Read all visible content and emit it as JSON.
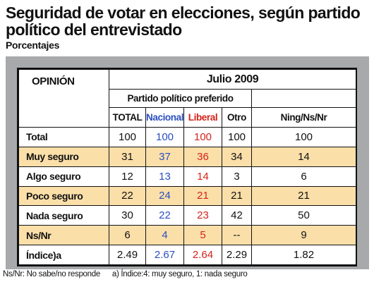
{
  "title": "Seguridad de votar en elecciones, según partido político del entrevistado",
  "subtitle": "Porcentajes",
  "table_header": {
    "opinion": "OPINIÓN",
    "period": "Julio 2009",
    "group": "Partido político preferido",
    "columns": [
      "TOTAL",
      "Nacional",
      "Liberal",
      "Otro",
      "Ning/Ns/Nr"
    ]
  },
  "colors": {
    "nacional": "#2a4fc1",
    "liberal": "#d6221a",
    "row_shade": "#fbdfa9",
    "panel": "#a8a9ab"
  },
  "chart_data": {
    "type": "table",
    "columns": [
      "TOTAL",
      "Nacional",
      "Liberal",
      "Otro",
      "Ning/Ns/Nr"
    ],
    "rows": [
      {
        "label": "Total",
        "values": [
          "100",
          "100",
          "100",
          "100",
          "100"
        ],
        "shaded": false
      },
      {
        "label": "Muy seguro",
        "values": [
          "31",
          "37",
          "36",
          "34",
          "14"
        ],
        "shaded": true
      },
      {
        "label": "Algo seguro",
        "values": [
          "12",
          "13",
          "14",
          "3",
          "6"
        ],
        "shaded": false
      },
      {
        "label": "Poco seguro",
        "values": [
          "22",
          "24",
          "21",
          "21",
          "21"
        ],
        "shaded": true
      },
      {
        "label": "Nada seguro",
        "values": [
          "30",
          "22",
          "23",
          "42",
          "50"
        ],
        "shaded": false
      },
      {
        "label": "Ns/Nr",
        "values": [
          "6",
          "4",
          "5",
          "--",
          "9"
        ],
        "shaded": true
      },
      {
        "label": "Índice)a",
        "values": [
          "2.49",
          "2.67",
          "2.64",
          "2.29",
          "1.82"
        ],
        "shaded": false
      }
    ]
  },
  "footnotes": {
    "nsnr": "Ns/Nr: No sabe/no responde",
    "index": "a) Índice:4: muy seguro, 1: nada seguro"
  }
}
